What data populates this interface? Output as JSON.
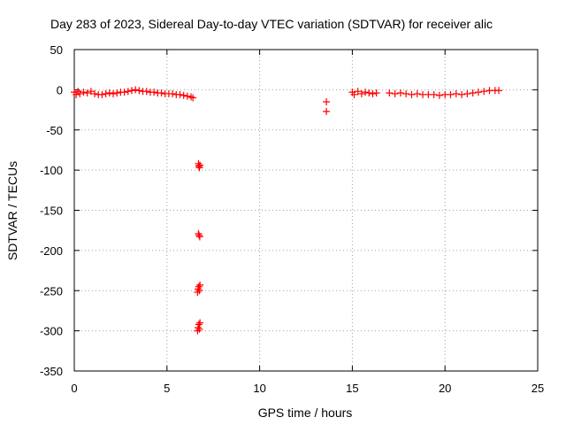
{
  "chart_data": {
    "type": "scatter",
    "title": "Day 283 of 2023, Sidereal Day-to-day VTEC variation (SDTVAR) for receiver alic",
    "xlabel": "GPS time / hours",
    "ylabel": "SDTVAR / TECUs",
    "xlim": [
      0,
      25
    ],
    "ylim": [
      -350,
      50
    ],
    "xticks": [
      0,
      5,
      10,
      15,
      20,
      25
    ],
    "yticks": [
      50,
      0,
      -50,
      -100,
      -150,
      -200,
      -250,
      -300,
      -350
    ],
    "xtick_labels": [
      "0",
      "5",
      "10",
      "15",
      "20",
      "25"
    ],
    "ytick_labels": [
      "50",
      "0",
      "-50",
      "-100",
      "-150",
      "-200",
      "-250",
      "-300",
      "-350"
    ],
    "grid": true,
    "marker": "+",
    "color": "#ff0000",
    "series": [
      {
        "name": "SDTVAR",
        "points": [
          [
            0.0,
            -3
          ],
          [
            0.1,
            -6
          ],
          [
            0.2,
            -2
          ],
          [
            0.3,
            -5
          ],
          [
            0.5,
            -3
          ],
          [
            0.7,
            -4
          ],
          [
            0.9,
            -2
          ],
          [
            1.1,
            -5
          ],
          [
            1.3,
            -6
          ],
          [
            1.5,
            -6
          ],
          [
            1.7,
            -5
          ],
          [
            1.9,
            -4
          ],
          [
            2.1,
            -5
          ],
          [
            2.3,
            -4
          ],
          [
            2.5,
            -3
          ],
          [
            2.7,
            -3
          ],
          [
            2.9,
            -2
          ],
          [
            3.1,
            -1
          ],
          [
            3.3,
            0
          ],
          [
            3.5,
            -1
          ],
          [
            3.7,
            -2
          ],
          [
            3.9,
            -2
          ],
          [
            4.1,
            -3
          ],
          [
            4.3,
            -3
          ],
          [
            4.5,
            -4
          ],
          [
            4.7,
            -4
          ],
          [
            4.9,
            -5
          ],
          [
            5.1,
            -5
          ],
          [
            5.3,
            -5
          ],
          [
            5.5,
            -6
          ],
          [
            5.7,
            -6
          ],
          [
            5.9,
            -7
          ],
          [
            6.1,
            -8
          ],
          [
            6.3,
            -9
          ],
          [
            6.4,
            -10
          ],
          [
            6.7,
            -92
          ],
          [
            6.72,
            -95
          ],
          [
            6.75,
            -97
          ],
          [
            6.78,
            -94
          ],
          [
            6.7,
            -179
          ],
          [
            6.73,
            -181
          ],
          [
            6.77,
            -183
          ],
          [
            6.65,
            -252
          ],
          [
            6.68,
            -248
          ],
          [
            6.72,
            -245
          ],
          [
            6.75,
            -250
          ],
          [
            6.78,
            -243
          ],
          [
            6.65,
            -300
          ],
          [
            6.68,
            -296
          ],
          [
            6.72,
            -292
          ],
          [
            6.75,
            -298
          ],
          [
            6.78,
            -290
          ],
          [
            13.6,
            -15
          ],
          [
            13.6,
            -27
          ],
          [
            15.0,
            -3
          ],
          [
            15.1,
            -6
          ],
          [
            15.3,
            -2
          ],
          [
            15.5,
            -5
          ],
          [
            15.7,
            -3
          ],
          [
            15.9,
            -4
          ],
          [
            16.1,
            -5
          ],
          [
            16.3,
            -4
          ],
          [
            17.0,
            -4
          ],
          [
            17.3,
            -5
          ],
          [
            17.6,
            -4
          ],
          [
            17.9,
            -5
          ],
          [
            18.2,
            -6
          ],
          [
            18.5,
            -5
          ],
          [
            18.8,
            -6
          ],
          [
            19.1,
            -6
          ],
          [
            19.4,
            -6
          ],
          [
            19.7,
            -7
          ],
          [
            20.0,
            -6
          ],
          [
            20.3,
            -6
          ],
          [
            20.6,
            -5
          ],
          [
            20.9,
            -6
          ],
          [
            21.2,
            -5
          ],
          [
            21.5,
            -4
          ],
          [
            21.8,
            -3
          ],
          [
            22.1,
            -2
          ],
          [
            22.4,
            -1
          ],
          [
            22.7,
            -1
          ],
          [
            22.9,
            -1
          ]
        ]
      }
    ]
  }
}
